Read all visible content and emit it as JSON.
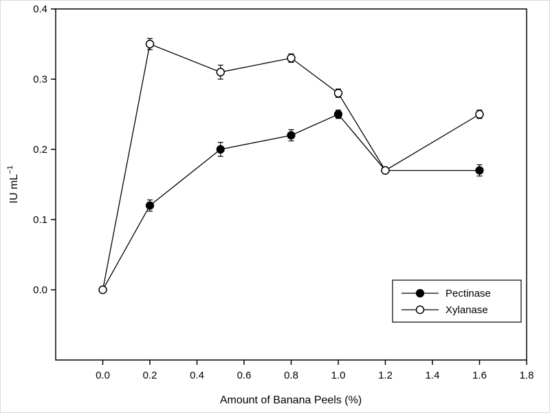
{
  "chart_data": {
    "type": "line",
    "title": "",
    "xlabel": "Amount of Banana Peels (%)",
    "ylabel": "IU mL⁻¹",
    "ylabel_base": "IU mL",
    "ylabel_sup": "−1",
    "x": [
      0.0,
      0.2,
      0.5,
      0.8,
      1.0,
      1.2,
      1.6
    ],
    "series": [
      {
        "name": "Pectinase",
        "marker": "filled-circle",
        "values": [
          0.0,
          0.12,
          0.2,
          0.22,
          0.25,
          0.17,
          0.17
        ],
        "errors": [
          0,
          0.008,
          0.01,
          0.008,
          0.006,
          0.004,
          0.008
        ]
      },
      {
        "name": "Xylanase",
        "marker": "open-circle",
        "values": [
          0.0,
          0.35,
          0.31,
          0.33,
          0.28,
          0.17,
          0.25
        ],
        "errors": [
          0,
          0.008,
          0.01,
          0.006,
          0.006,
          0.004,
          0.006
        ]
      }
    ],
    "xlim": [
      -0.2,
      1.8
    ],
    "ylim": [
      -0.1,
      0.4
    ],
    "xticks": [
      0.0,
      0.2,
      0.4,
      0.6,
      0.8,
      1.0,
      1.2,
      1.4,
      1.6,
      1.8
    ],
    "yticks": [
      0.0,
      0.1,
      0.2,
      0.3,
      0.4
    ],
    "grid": false,
    "legend_position": "lower-right",
    "colors": {
      "axis": "#000000",
      "line": "#000000",
      "marker_fill": "#000000",
      "marker_open_fill": "#ffffff",
      "background": "#ffffff"
    }
  }
}
